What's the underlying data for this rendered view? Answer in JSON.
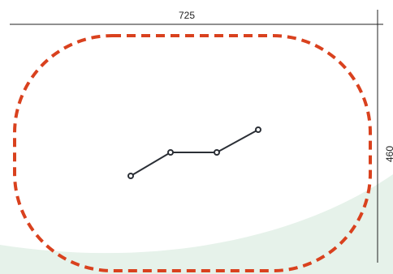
{
  "dimensions": {
    "width_label": "725",
    "height_label": "460"
  },
  "colors": {
    "background": "#ffffff",
    "wash": "#e6f2ea",
    "boundary": "#d9411e",
    "polyline": "#2b2f36",
    "dimension_line": "#222222"
  },
  "path": {
    "vertex_count": 4
  }
}
